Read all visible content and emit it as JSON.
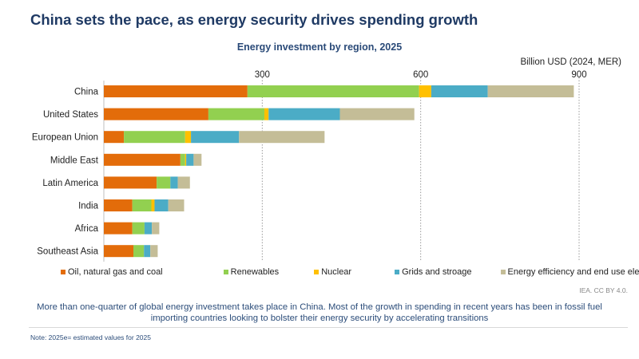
{
  "header": {
    "title": "China sets the pace, as energy security drives spending growth",
    "subtitle": "Energy investment by region, 2025",
    "unit": "Billion USD (2024, MER)"
  },
  "chart_data": {
    "type": "bar",
    "orientation": "horizontal",
    "stacked": true,
    "title": "Energy investment by region, 2025",
    "xlabel": "Billion USD (2024, MER)",
    "ylabel": "",
    "xlim": [
      0,
      900
    ],
    "xticks": [
      300,
      600,
      900
    ],
    "grid": "vertical dotted",
    "legend": "bottom",
    "categories": [
      "China",
      "United States",
      "European Union",
      "Middle East",
      "Latin America",
      "India",
      "Africa",
      "Southeast Asia"
    ],
    "series": [
      {
        "name": "Oil, natural gas and coal",
        "color": "#e36c0a",
        "values": [
          272,
          198,
          38,
          145,
          100,
          54,
          54,
          56
        ]
      },
      {
        "name": "Renewables",
        "color": "#92d050",
        "values": [
          325,
          106,
          116,
          9,
          26,
          36,
          23,
          20
        ]
      },
      {
        "name": "Nuclear",
        "color": "#ffc000",
        "values": [
          23,
          8,
          11,
          2,
          0,
          6,
          0,
          0
        ]
      },
      {
        "name": "Grids and stroage",
        "color": "#4bacc6",
        "values": [
          107,
          135,
          91,
          14,
          14,
          26,
          14,
          12
        ]
      },
      {
        "name": "Energy efficiency and end use electrification",
        "color": "#c4bd97",
        "values": [
          163,
          141,
          162,
          15,
          23,
          30,
          14,
          14
        ]
      }
    ]
  },
  "footer": {
    "source": "IEA. CC BY 4.0.",
    "caption_line1": "More than one-quarter of global energy investment takes place in China. Most of the growth in spending in recent years has been in fossil fuel",
    "caption_line2": "importing countries looking to bolster their energy security by accelerating transitions",
    "note": "Note: 2025e= estimated values for 2025"
  }
}
